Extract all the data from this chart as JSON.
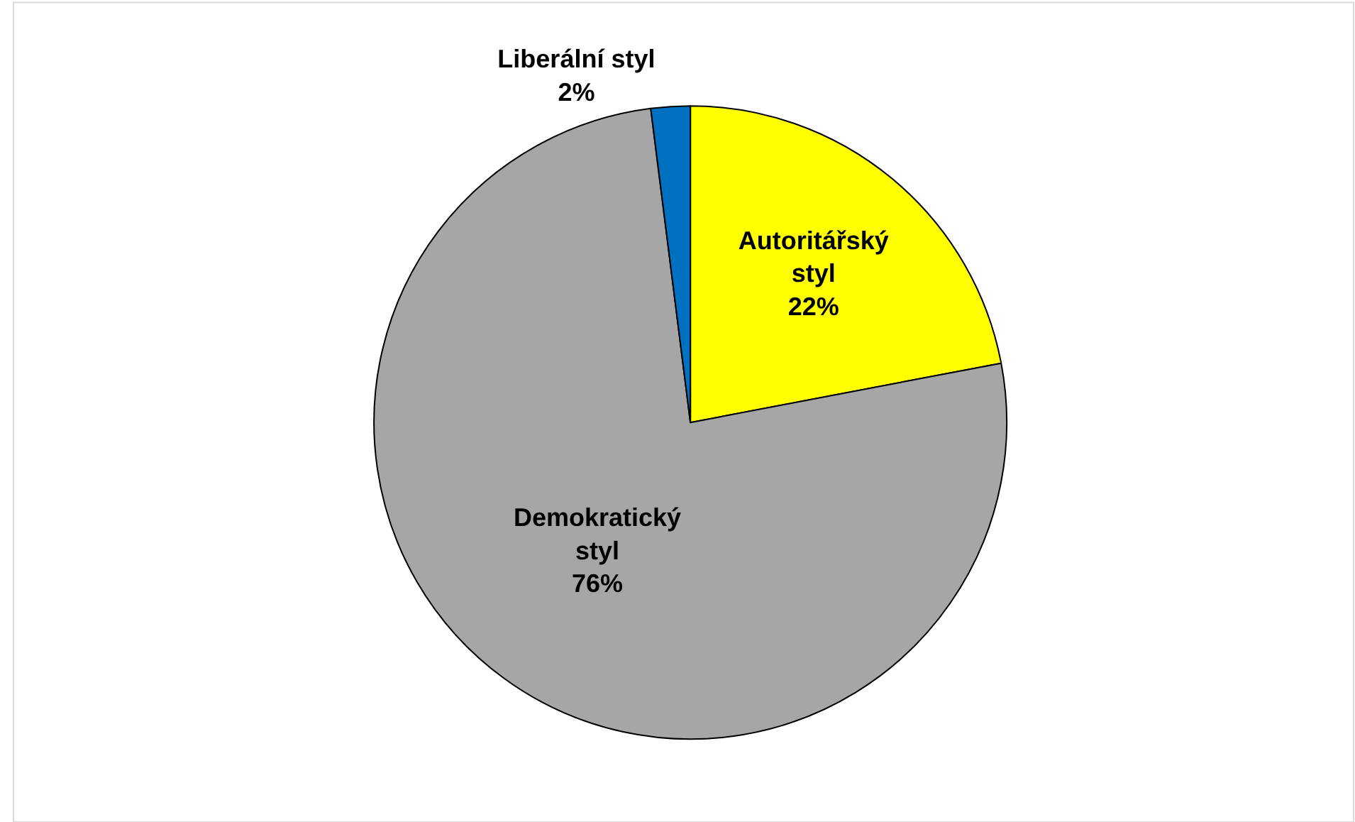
{
  "chart_data": {
    "type": "pie",
    "categories": [
      "Autoritářský styl",
      "Demokratický styl",
      "Liberální styl"
    ],
    "values": [
      22,
      76,
      2
    ],
    "colors": [
      "#ffff00",
      "#a6a6a6",
      "#0070c0"
    ],
    "value_labels": [
      "22%",
      "76%",
      "2%"
    ],
    "legend": false
  }
}
